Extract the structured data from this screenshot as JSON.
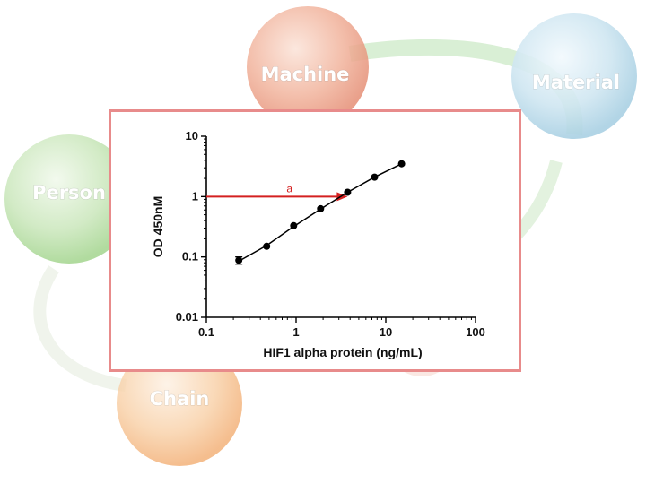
{
  "background": {
    "bubbles": [
      {
        "label": "Machine",
        "color": "#e07a5a"
      },
      {
        "label": "Material",
        "color": "#9ccbe0"
      },
      {
        "label": "Person",
        "color": "#9fcf86"
      },
      {
        "label": "Chain",
        "color": "#f3a55c"
      }
    ],
    "ring_color": "#9fd49a"
  },
  "panel": {
    "border_color": "#e88b8b"
  },
  "chart_data": {
    "type": "scatter",
    "x_scale": "log",
    "y_scale": "log",
    "xlabel": "HIF1 alpha protein (ng/mL)",
    "ylabel": "OD 450nM",
    "xlim": [
      0.1,
      100
    ],
    "ylim": [
      0.01,
      10
    ],
    "x_ticks": [
      "0.1",
      "1",
      "10",
      "100"
    ],
    "y_ticks": [
      "0.01",
      "0.1",
      "1",
      "10"
    ],
    "grid": false,
    "series": [
      {
        "x": [
          0.23,
          0.47,
          0.94,
          1.875,
          3.75,
          7.5,
          15
        ],
        "y": [
          0.088,
          0.15,
          0.33,
          0.63,
          1.18,
          2.1,
          3.5
        ],
        "error": [
          0.012,
          0,
          0,
          0,
          0,
          0,
          0
        ],
        "color": "#000000"
      }
    ],
    "fit_curve": {
      "x": [
        0.23,
        0.47,
        0.94,
        1.875,
        3.75,
        7.5,
        15
      ],
      "y": [
        0.085,
        0.155,
        0.32,
        0.62,
        1.18,
        2.1,
        3.5
      ]
    },
    "annotation": {
      "label": "a",
      "y": 1,
      "x_start": 0.1,
      "x_end": 3.75,
      "color": "#d42020"
    }
  }
}
